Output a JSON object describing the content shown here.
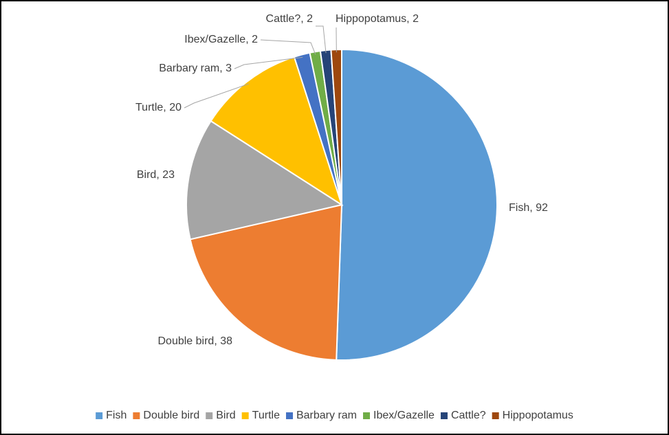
{
  "chart_data": {
    "type": "pie",
    "categories": [
      "Fish",
      "Double bird",
      "Bird",
      "Turtle",
      "Barbary ram",
      "Ibex/Gazelle",
      "Cattle?",
      "Hippopotamus"
    ],
    "values": [
      92,
      38,
      23,
      20,
      3,
      2,
      2,
      2
    ],
    "value_labels": [
      "Fish, 92",
      "Double bird, 38",
      "Bird, 23",
      "Turtle, 20",
      "Barbary ram, 3",
      "Ibex/Gazelle, 2",
      "Cattle?, 2",
      "Hippopotamus, 2"
    ],
    "colors": [
      "#5b9bd5",
      "#ed7d31",
      "#a5a5a5",
      "#ffc000",
      "#4472c4",
      "#70ad47",
      "#264478",
      "#9e480e"
    ],
    "legend": "bottom"
  }
}
